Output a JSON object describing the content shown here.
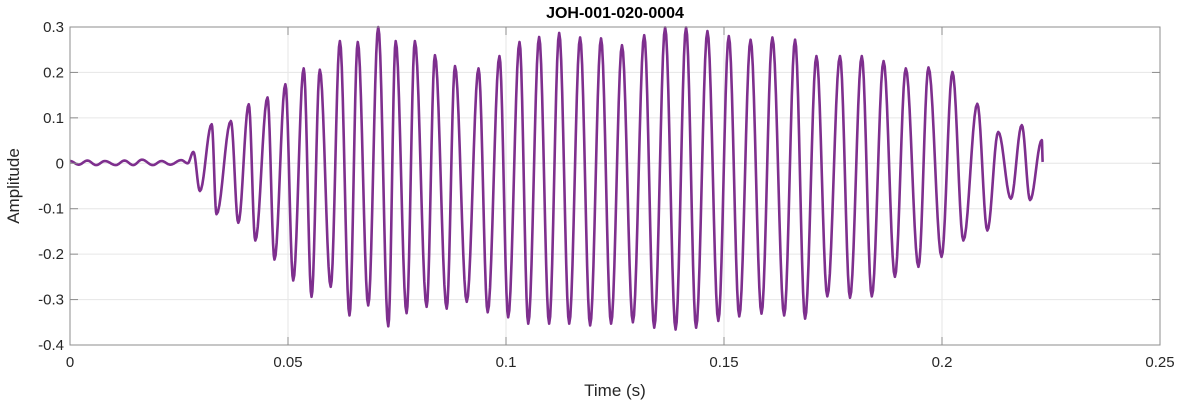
{
  "chart_data": {
    "type": "line",
    "title": "JOH-001-020-0004",
    "xlabel": "Time (s)",
    "ylabel": "Amplitude",
    "xlim": [
      0,
      0.25
    ],
    "ylim": [
      -0.4,
      0.3
    ],
    "xticks": [
      0,
      0.05,
      0.1,
      0.15,
      0.2,
      0.25
    ],
    "xtick_labels": [
      "0",
      "0.05",
      "0.1",
      "0.15",
      "0.2",
      "0.25"
    ],
    "yticks": [
      -0.4,
      -0.3,
      -0.2,
      -0.1,
      0,
      0.1,
      0.2,
      0.3
    ],
    "ytick_labels": [
      "-0.4",
      "-0.3",
      "-0.2",
      "-0.1",
      "0",
      "0.1",
      "0.2",
      "0.3"
    ],
    "grid": true,
    "line_color": "#7E2F8E",
    "series": [
      {
        "x": [
          0,
          0.002,
          0.004,
          0.006,
          0.008,
          0.0105,
          0.0125,
          0.0145,
          0.0165,
          0.019,
          0.021,
          0.023,
          0.0255,
          0.027,
          0.0283,
          0.0298,
          0.0325,
          0.0336,
          0.0369,
          0.0386,
          0.041,
          0.0425,
          0.0453,
          0.0469,
          0.0494,
          0.0512,
          0.0536,
          0.0554,
          0.0573,
          0.0598,
          0.0619,
          0.0641,
          0.066,
          0.0684,
          0.0707,
          0.073,
          0.0747,
          0.0772,
          0.0791,
          0.0818,
          0.0837,
          0.0864,
          0.0883,
          0.091,
          0.0937,
          0.0958,
          0.0985,
          0.1005,
          0.1031,
          0.1051,
          0.1076,
          0.1099,
          0.1122,
          0.1145,
          0.117,
          0.1193,
          0.1218,
          0.1241,
          0.1266,
          0.1291,
          0.1317,
          0.134,
          0.1365,
          0.1389,
          0.1413,
          0.1436,
          0.1462,
          0.1487,
          0.1511,
          0.1535,
          0.1561,
          0.1586,
          0.1611,
          0.1638,
          0.1663,
          0.1686,
          0.1712,
          0.1737,
          0.1766,
          0.1789,
          0.1816,
          0.1839,
          0.1866,
          0.1892,
          0.1917,
          0.1946,
          0.1969,
          0.1999,
          0.2024,
          0.2049,
          0.2081,
          0.2104,
          0.2129,
          0.2158,
          0.2183,
          0.2202,
          0.2229,
          0.2231
        ],
        "y": [
          0.005,
          -0.003,
          0.006,
          -0.004,
          0.005,
          -0.004,
          0.006,
          -0.004,
          0.008,
          -0.004,
          0.005,
          -0.003,
          0.007,
          0.0,
          0.025,
          -0.061,
          0.086,
          -0.112,
          0.093,
          -0.131,
          0.13,
          -0.17,
          0.145,
          -0.212,
          0.174,
          -0.258,
          0.209,
          -0.294,
          0.206,
          -0.272,
          0.269,
          -0.335,
          0.267,
          -0.313,
          0.3,
          -0.359,
          0.269,
          -0.33,
          0.269,
          -0.316,
          0.238,
          -0.32,
          0.214,
          -0.305,
          0.209,
          -0.328,
          0.236,
          -0.339,
          0.267,
          -0.353,
          0.278,
          -0.353,
          0.287,
          -0.353,
          0.277,
          -0.357,
          0.275,
          -0.353,
          0.26,
          -0.35,
          0.282,
          -0.362,
          0.299,
          -0.366,
          0.299,
          -0.362,
          0.291,
          -0.347,
          0.28,
          -0.337,
          0.272,
          -0.331,
          0.277,
          -0.335,
          0.272,
          -0.342,
          0.236,
          -0.293,
          0.236,
          -0.296,
          0.236,
          -0.293,
          0.225,
          -0.25,
          0.209,
          -0.228,
          0.211,
          -0.206,
          0.201,
          -0.17,
          0.131,
          -0.148,
          0.069,
          -0.078,
          0.084,
          -0.081,
          0.051,
          0.003
        ]
      }
    ]
  }
}
